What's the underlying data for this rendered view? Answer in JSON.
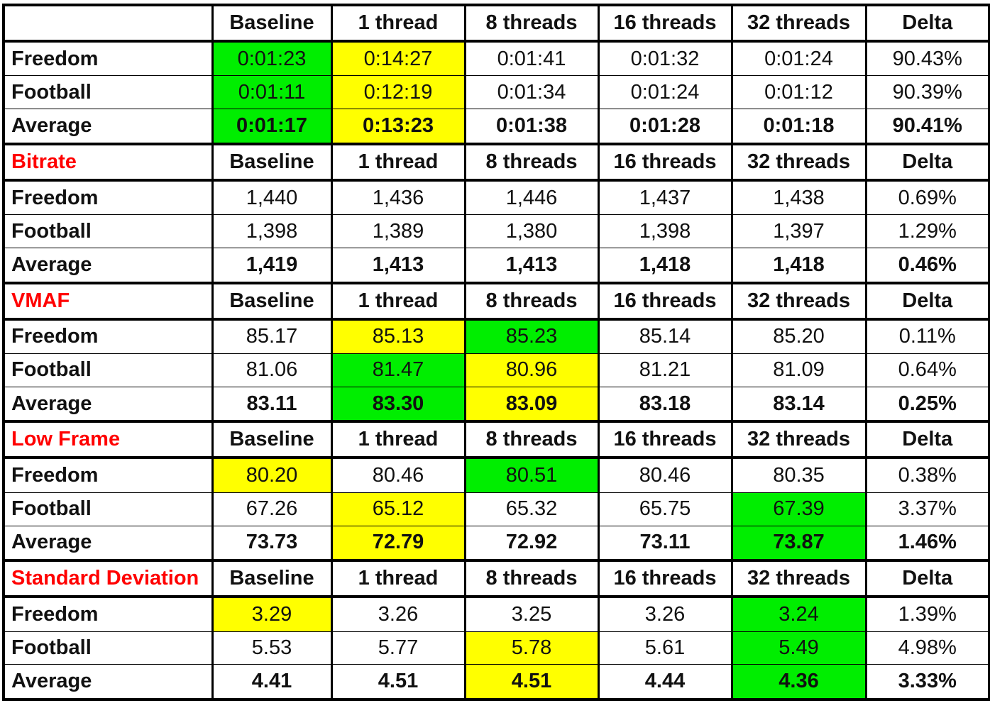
{
  "columns": [
    "Baseline",
    "1 thread",
    "8 threads",
    "16 threads",
    "32 threads",
    "Delta"
  ],
  "highlight_colors": {
    "green": "#00ee00",
    "yellow": "#ffff00"
  },
  "sections": [
    {
      "title": "",
      "rows": [
        {
          "label": "Freedom",
          "values": [
            "0:01:23",
            "0:14:27",
            "0:01:41",
            "0:01:32",
            "0:01:24",
            "90.43%"
          ],
          "highlight": [
            "green",
            "yellow",
            "",
            "",
            "",
            ""
          ]
        },
        {
          "label": "Football",
          "values": [
            "0:01:11",
            "0:12:19",
            "0:01:34",
            "0:01:24",
            "0:01:12",
            "90.39%"
          ],
          "highlight": [
            "green",
            "yellow",
            "",
            "",
            "",
            ""
          ]
        },
        {
          "label": "Average",
          "values": [
            "0:01:17",
            "0:13:23",
            "0:01:38",
            "0:01:28",
            "0:01:18",
            "90.41%"
          ],
          "highlight": [
            "green",
            "yellow",
            "",
            "",
            "",
            ""
          ]
        }
      ]
    },
    {
      "title": "Bitrate",
      "rows": [
        {
          "label": "Freedom",
          "values": [
            "1,440",
            "1,436",
            "1,446",
            "1,437",
            "1,438",
            "0.69%"
          ],
          "highlight": [
            "",
            "",
            "",
            "",
            "",
            ""
          ]
        },
        {
          "label": "Football",
          "values": [
            "1,398",
            "1,389",
            "1,380",
            "1,398",
            "1,397",
            "1.29%"
          ],
          "highlight": [
            "",
            "",
            "",
            "",
            "",
            ""
          ]
        },
        {
          "label": "Average",
          "values": [
            "1,419",
            "1,413",
            "1,413",
            "1,418",
            "1,418",
            "0.46%"
          ],
          "highlight": [
            "",
            "",
            "",
            "",
            "",
            ""
          ]
        }
      ]
    },
    {
      "title": "VMAF",
      "rows": [
        {
          "label": "Freedom",
          "values": [
            "85.17",
            "85.13",
            "85.23",
            "85.14",
            "85.20",
            "0.11%"
          ],
          "highlight": [
            "",
            "yellow",
            "green",
            "",
            "",
            ""
          ]
        },
        {
          "label": "Football",
          "values": [
            "81.06",
            "81.47",
            "80.96",
            "81.21",
            "81.09",
            "0.64%"
          ],
          "highlight": [
            "",
            "green",
            "yellow",
            "",
            "",
            ""
          ]
        },
        {
          "label": "Average",
          "values": [
            "83.11",
            "83.30",
            "83.09",
            "83.18",
            "83.14",
            "0.25%"
          ],
          "highlight": [
            "",
            "green",
            "yellow",
            "",
            "",
            ""
          ]
        }
      ]
    },
    {
      "title": "Low Frame",
      "rows": [
        {
          "label": "Freedom",
          "values": [
            "80.20",
            "80.46",
            "80.51",
            "80.46",
            "80.35",
            "0.38%"
          ],
          "highlight": [
            "yellow",
            "",
            "green",
            "",
            "",
            ""
          ]
        },
        {
          "label": "Football",
          "values": [
            "67.26",
            "65.12",
            "65.32",
            "65.75",
            "67.39",
            "3.37%"
          ],
          "highlight": [
            "",
            "yellow",
            "",
            "",
            "green",
            ""
          ]
        },
        {
          "label": "Average",
          "values": [
            "73.73",
            "72.79",
            "72.92",
            "73.11",
            "73.87",
            "1.46%"
          ],
          "highlight": [
            "",
            "yellow",
            "",
            "",
            "green",
            ""
          ]
        }
      ]
    },
    {
      "title": "Standard Deviation",
      "rows": [
        {
          "label": "Freedom",
          "values": [
            "3.29",
            "3.26",
            "3.25",
            "3.26",
            "3.24",
            "1.39%"
          ],
          "highlight": [
            "yellow",
            "",
            "",
            "",
            "green",
            ""
          ]
        },
        {
          "label": "Football",
          "values": [
            "5.53",
            "5.77",
            "5.78",
            "5.61",
            "5.49",
            "4.98%"
          ],
          "highlight": [
            "",
            "",
            "yellow",
            "",
            "green",
            ""
          ]
        },
        {
          "label": "Average",
          "values": [
            "4.41",
            "4.51",
            "4.51",
            "4.44",
            "4.36",
            "3.33%"
          ],
          "highlight": [
            "",
            "",
            "yellow",
            "",
            "green",
            ""
          ]
        }
      ]
    }
  ]
}
